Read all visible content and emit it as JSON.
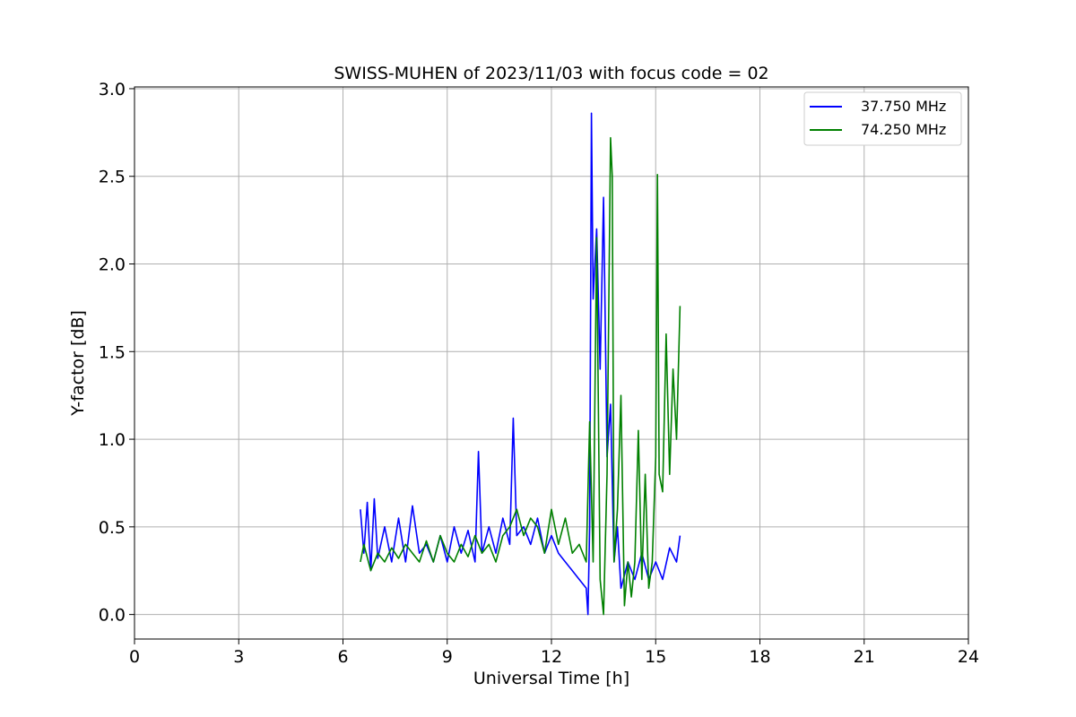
{
  "chart_data": {
    "type": "line",
    "title": "SWISS-MUHEN of 2023/11/03 with focus code = 02",
    "xlabel": "Universal Time [h]",
    "ylabel": "Y-factor [dB]",
    "xlim": [
      0,
      24
    ],
    "ylim": [
      -0.14,
      3.01
    ],
    "xticks": [
      0,
      3,
      6,
      9,
      12,
      15,
      18,
      21,
      24
    ],
    "xtick_labels": [
      "0",
      "3",
      "6",
      "9",
      "12",
      "15",
      "18",
      "21",
      "24"
    ],
    "yticks": [
      0.0,
      0.5,
      1.0,
      1.5,
      2.0,
      2.5,
      3.0
    ],
    "ytick_labels": [
      "0.0",
      "0.5",
      "1.0",
      "1.5",
      "2.0",
      "2.5",
      "3.0"
    ],
    "grid": true,
    "legend_position": "top-right",
    "series": [
      {
        "name": "37.750 MHz",
        "color": "#0000ff",
        "x": [
          6.5,
          6.6,
          6.7,
          6.8,
          6.9,
          7.0,
          7.2,
          7.4,
          7.6,
          7.8,
          8.0,
          8.2,
          8.4,
          8.6,
          8.8,
          9.0,
          9.2,
          9.4,
          9.6,
          9.8,
          9.9,
          10.0,
          10.2,
          10.4,
          10.6,
          10.8,
          10.9,
          11.0,
          11.2,
          11.4,
          11.6,
          11.8,
          12.0,
          12.2,
          12.4,
          12.6,
          12.8,
          13.0,
          13.05,
          13.1,
          13.15,
          13.2,
          13.3,
          13.4,
          13.5,
          13.6,
          13.7,
          13.8,
          13.9,
          14.0,
          14.2,
          14.4,
          14.6,
          14.8,
          15.0,
          15.2,
          15.4,
          15.6,
          15.7
        ],
        "y": [
          0.6,
          0.35,
          0.64,
          0.25,
          0.66,
          0.32,
          0.5,
          0.3,
          0.55,
          0.3,
          0.62,
          0.35,
          0.4,
          0.3,
          0.45,
          0.3,
          0.5,
          0.35,
          0.48,
          0.3,
          0.93,
          0.35,
          0.5,
          0.35,
          0.55,
          0.4,
          1.12,
          0.45,
          0.5,
          0.4,
          0.55,
          0.35,
          0.45,
          0.35,
          0.3,
          0.25,
          0.2,
          0.15,
          0.0,
          0.5,
          2.86,
          1.8,
          2.2,
          1.4,
          2.38,
          0.9,
          1.2,
          0.3,
          0.5,
          0.15,
          0.3,
          0.2,
          0.35,
          0.2,
          0.3,
          0.2,
          0.38,
          0.3,
          0.45
        ]
      },
      {
        "name": "74.250 MHz",
        "color": "#008000",
        "x": [
          6.5,
          6.6,
          6.8,
          7.0,
          7.2,
          7.4,
          7.6,
          7.8,
          8.0,
          8.2,
          8.4,
          8.6,
          8.8,
          9.0,
          9.2,
          9.4,
          9.6,
          9.8,
          10.0,
          10.2,
          10.4,
          10.6,
          10.8,
          11.0,
          11.2,
          11.4,
          11.6,
          11.8,
          12.0,
          12.2,
          12.4,
          12.6,
          12.8,
          13.0,
          13.1,
          13.2,
          13.3,
          13.4,
          13.5,
          13.6,
          13.7,
          13.75,
          13.8,
          13.9,
          14.0,
          14.1,
          14.2,
          14.3,
          14.4,
          14.5,
          14.6,
          14.7,
          14.8,
          14.9,
          15.0,
          15.05,
          15.1,
          15.2,
          15.3,
          15.4,
          15.5,
          15.6,
          15.7
        ],
        "y": [
          0.3,
          0.4,
          0.25,
          0.35,
          0.3,
          0.38,
          0.32,
          0.4,
          0.35,
          0.3,
          0.42,
          0.3,
          0.45,
          0.35,
          0.3,
          0.4,
          0.33,
          0.45,
          0.35,
          0.4,
          0.3,
          0.45,
          0.5,
          0.6,
          0.45,
          0.55,
          0.5,
          0.35,
          0.6,
          0.4,
          0.55,
          0.35,
          0.4,
          0.3,
          1.1,
          0.3,
          2.15,
          0.2,
          0.0,
          0.8,
          2.72,
          2.5,
          0.3,
          0.6,
          1.25,
          0.05,
          0.3,
          0.1,
          0.3,
          1.05,
          0.2,
          0.8,
          0.15,
          0.3,
          0.9,
          2.51,
          0.8,
          0.7,
          1.6,
          0.8,
          1.4,
          1.0,
          1.76
        ]
      }
    ]
  }
}
